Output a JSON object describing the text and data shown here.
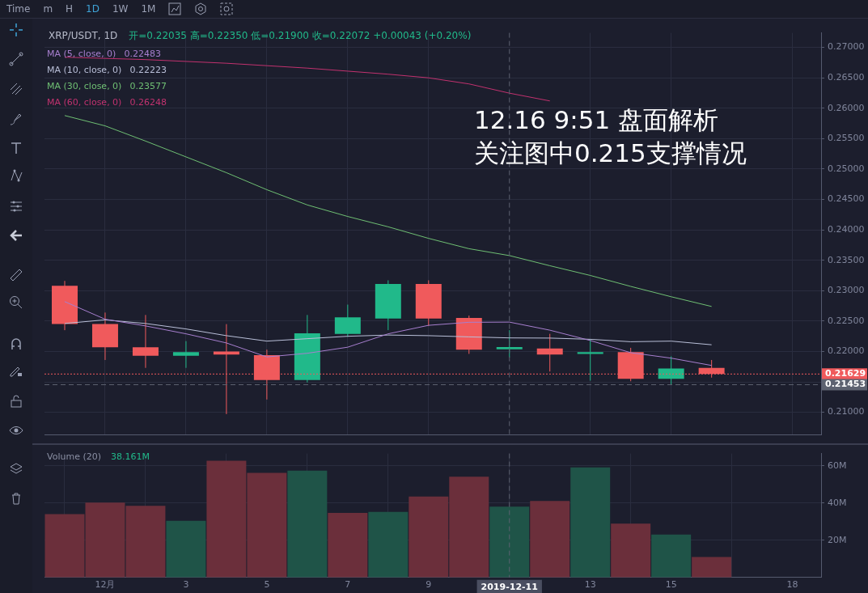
{
  "chart_data": [
    {
      "type": "candlestick",
      "title": "XRP/USDT, 1D",
      "x": [
        "2019-11-30",
        "2019-12-01",
        "2019-12-02",
        "2019-12-03",
        "2019-12-04",
        "2019-12-05",
        "2019-12-06",
        "2019-12-07",
        "2019-12-08",
        "2019-12-09",
        "2019-12-10",
        "2019-12-11",
        "2019-12-12",
        "2019-12-13",
        "2019-12-14",
        "2019-12-15",
        "2019-12-16"
      ],
      "ohlc": [
        [
          0.2308,
          0.2316,
          0.2235,
          0.2245
        ],
        [
          0.2245,
          0.2264,
          0.2186,
          0.2207
        ],
        [
          0.2207,
          0.226,
          0.2173,
          0.2193
        ],
        [
          0.2193,
          0.2217,
          0.2173,
          0.2199
        ],
        [
          0.22,
          0.2245,
          0.2097,
          0.2195
        ],
        [
          0.2194,
          0.2203,
          0.2121,
          0.2153
        ],
        [
          0.2153,
          0.226,
          0.2149,
          0.223
        ],
        [
          0.2229,
          0.2277,
          0.2224,
          0.2256
        ],
        [
          0.2254,
          0.2317,
          0.2235,
          0.2311
        ],
        [
          0.2311,
          0.2317,
          0.2242,
          0.2254
        ],
        [
          0.2255,
          0.2259,
          0.2196,
          0.2203
        ],
        [
          0.22035,
          0.2235,
          0.219,
          0.22072
        ],
        [
          0.2205,
          0.2229,
          0.2167,
          0.2195
        ],
        [
          0.2196,
          0.222,
          0.2152,
          0.2199
        ],
        [
          0.2199,
          0.2206,
          0.2151,
          0.2155
        ],
        [
          0.2155,
          0.2192,
          0.21453,
          0.2172
        ],
        [
          0.2173,
          0.2186,
          0.2157,
          0.21629
        ]
      ],
      "colors": [
        "#f05a5c",
        "#f05a5c",
        "#f05a5c",
        "#21b98a",
        "#f05a5c",
        "#f05a5c",
        "#21b98a",
        "#21b98a",
        "#21b98a",
        "#f05a5c",
        "#f05a5c",
        "#21b98a",
        "#f05a5c",
        "#21b98a",
        "#f05a5c",
        "#21b98a",
        "#f05a5c"
      ],
      "series": [
        {
          "type": "line",
          "name": "MA (5, close, 0)",
          "color": "#a77fcf",
          "values": [
            0.2282,
            0.2253,
            0.2242,
            0.2229,
            0.2214,
            0.2191,
            0.2197,
            0.2207,
            0.2229,
            0.2243,
            0.2248,
            0.22483,
            0.2235,
            0.2218,
            0.2198,
            0.2189,
            0.2177
          ]
        },
        {
          "type": "line",
          "name": "MA (10, close, 0)",
          "color": "#b9bfd8",
          "values": [
            0.2246,
            0.2252,
            0.2246,
            0.2237,
            0.2226,
            0.2217,
            0.2221,
            0.2225,
            0.2227,
            0.2226,
            0.2224,
            0.22223,
            0.2222,
            0.222,
            0.2216,
            0.2217,
            0.2211
          ]
        },
        {
          "type": "line",
          "name": "MA (30, close, 0)",
          "color": "#6fbf73",
          "values": [
            0.2588,
            0.2571,
            0.2546,
            0.252,
            0.2494,
            0.2466,
            0.2441,
            0.2422,
            0.2405,
            0.2386,
            0.2369,
            0.23577,
            0.2341,
            0.2325,
            0.2307,
            0.229,
            0.2274
          ]
        },
        {
          "type": "line",
          "name": "MA (60, close, 0)",
          "color": "#c2326f",
          "values": [
            0.2684,
            0.2682,
            0.268,
            0.2677,
            0.2674,
            0.267,
            0.2666,
            0.2661,
            0.2656,
            0.265,
            0.264,
            0.26248,
            0.2612,
            null,
            null,
            null,
            null
          ]
        }
      ],
      "annotations": [
        "开=0.22035  高=0.22350  低=0.21900  收=0.22072  +0.00043 (+0.20%)",
        "0.22483",
        "0.22223",
        "0.23577",
        "0.26248",
        "12.16 9:51 盘面解析",
        "关注图中0.215支撑情况"
      ],
      "xlim": [
        "2019-11-29T12:00",
        "2019-12-18T17:00"
      ],
      "xticks": [
        {
          "value": "2019-12-01",
          "label": null
        },
        {
          "value": "2019-12-03",
          "label": null
        },
        {
          "value": "2019-12-05",
          "label": null
        },
        {
          "value": "2019-12-07",
          "label": null
        },
        {
          "value": "2019-12-09",
          "label": null
        },
        {
          "value": "2019-12-13",
          "label": null
        },
        {
          "value": "2019-12-15",
          "label": null
        },
        {
          "value": "2019-12-18",
          "label": null
        }
      ],
      "ylim": [
        0.2063,
        0.2724
      ],
      "yticks": [
        {
          "value": 0.21,
          "label": "0.21000"
        },
        {
          "value": 0.215,
          "label": null
        },
        {
          "value": 0.22,
          "label": "0.22000"
        },
        {
          "value": 0.225,
          "label": "0.22500"
        },
        {
          "value": 0.23,
          "label": "0.23000"
        },
        {
          "value": 0.235,
          "label": "0.23500"
        },
        {
          "value": 0.24,
          "label": "0.24000"
        },
        {
          "value": 0.245,
          "label": "0.24500"
        },
        {
          "value": 0.25,
          "label": "0.25000"
        },
        {
          "value": 0.255,
          "label": "0.25500"
        },
        {
          "value": 0.26,
          "label": "0.26000"
        },
        {
          "value": 0.265,
          "label": "0.26500"
        },
        {
          "value": 0.27,
          "label": "0.27000"
        }
      ],
      "ref_lines": [
        {
          "axis": "y",
          "value": 0.21629,
          "label": "0.21629",
          "color": "#f05a5c",
          "line_style": "dotted"
        },
        {
          "axis": "y",
          "value": 0.21453,
          "label": "0.21453",
          "color": "#5d6270",
          "line_style": "dashed"
        },
        {
          "axis": "x",
          "value": "2019-12-11",
          "label": null,
          "color": "#5d6270",
          "line_style": "dashed"
        }
      ],
      "grid": true,
      "legend": "top left",
      "marker": "none",
      "line_style": "solid",
      "tick_labels": "y"
    },
    {
      "type": "bar",
      "title": "Volume (20)",
      "x": [
        "2019-11-30",
        "2019-12-01",
        "2019-12-02",
        "2019-12-03",
        "2019-12-04",
        "2019-12-05",
        "2019-12-06",
        "2019-12-07",
        "2019-12-08",
        "2019-12-09",
        "2019-12-10",
        "2019-12-11",
        "2019-12-12",
        "2019-12-13",
        "2019-12-14",
        "2019-12-15",
        "2019-12-16"
      ],
      "values": [
        34.1,
        40.3,
        38.5,
        30.5,
        62.8,
        56.3,
        57.5,
        34.7,
        35.3,
        43.6,
        54.2,
        38.161,
        41.2,
        59.2,
        29.0,
        23.1,
        11.0
      ],
      "colors": [
        "#6b2f3b",
        "#6b2f3b",
        "#6b2f3b",
        "#1f5448",
        "#6b2f3b",
        "#6b2f3b",
        "#1f5448",
        "#6b2f3b",
        "#1f5448",
        "#6b2f3b",
        "#6b2f3b",
        "#1f5448",
        "#6b2f3b",
        "#1f5448",
        "#6b2f3b",
        "#1f5448",
        "#6b2f3b"
      ],
      "annotations": [
        "38.161M"
      ],
      "xlim": [
        "2019-11-29T12:00",
        "2019-12-18T17:00"
      ],
      "xticks": [
        {
          "value": "2019-12-01",
          "label": "12月"
        },
        {
          "value": "2019-12-03",
          "label": "3"
        },
        {
          "value": "2019-12-05",
          "label": "5"
        },
        {
          "value": "2019-12-07",
          "label": "7"
        },
        {
          "value": "2019-12-09",
          "label": "9"
        },
        {
          "value": "2019-12-13",
          "label": "13"
        },
        {
          "value": "2019-12-15",
          "label": "15"
        },
        {
          "value": "2019-12-18",
          "label": "18"
        }
      ],
      "ylim": [
        0,
        66.7
      ],
      "yticks": [
        {
          "value": 20,
          "label": "20M"
        },
        {
          "value": 40,
          "label": "40M"
        },
        {
          "value": 60,
          "label": "60M"
        }
      ],
      "ref_lines": [
        {
          "axis": "x",
          "value": "2019-12-11",
          "label": "2019-12-11",
          "color": "#5d6270",
          "line_style": "dashed"
        }
      ],
      "grid": true
    },
    {
      "type": "other",
      "annotations": [
        "Time",
        "m",
        "H",
        "1D",
        "1W",
        "1M"
      ]
    }
  ]
}
